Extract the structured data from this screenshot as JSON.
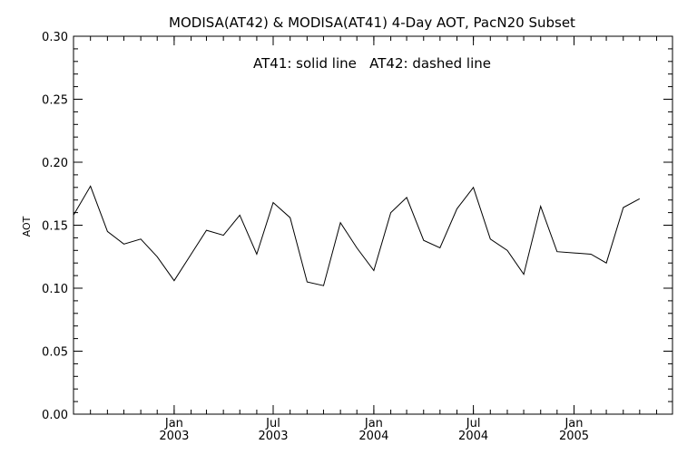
{
  "chart_data": {
    "type": "line",
    "title": "MODISA(AT42) & MODISA(AT41) 4-Day AOT, PacN20 Subset",
    "annotation": "AT41: solid line   AT42: dashed line",
    "xlabel": "",
    "ylabel": "AOT",
    "ylim": [
      0.0,
      0.3
    ],
    "yticks": [
      {
        "value": 0.0,
        "label": "0.00"
      },
      {
        "value": 0.05,
        "label": "0.05"
      },
      {
        "value": 0.1,
        "label": "0.10"
      },
      {
        "value": 0.15,
        "label": "0.15"
      },
      {
        "value": 0.2,
        "label": "0.20"
      },
      {
        "value": 0.25,
        "label": "0.25"
      },
      {
        "value": 0.3,
        "label": "0.30"
      }
    ],
    "xlim": [
      "2002-07-01",
      "2005-06-30"
    ],
    "xticks": [
      {
        "date": "2003-01-01",
        "label1": "Jan",
        "label2": "2003"
      },
      {
        "date": "2003-07-01",
        "label1": "Jul",
        "label2": "2003"
      },
      {
        "date": "2004-01-01",
        "label1": "Jan",
        "label2": "2004"
      },
      {
        "date": "2004-07-01",
        "label1": "Jul",
        "label2": "2004"
      },
      {
        "date": "2005-01-01",
        "label1": "Jan",
        "label2": "2005"
      }
    ],
    "grid": false,
    "series": [
      {
        "style": "solid",
        "points": [
          [
            "2002-07-01",
            0.158
          ],
          [
            "2002-08-01",
            0.181
          ],
          [
            "2002-09-01",
            0.145
          ],
          [
            "2002-10-01",
            0.135
          ],
          [
            "2002-11-01",
            0.139
          ],
          [
            "2002-12-01",
            0.125
          ],
          [
            "2003-01-01",
            0.106
          ],
          [
            "2003-02-01",
            0.127
          ],
          [
            "2003-03-01",
            0.146
          ],
          [
            "2003-04-01",
            0.142
          ],
          [
            "2003-05-01",
            0.158
          ],
          [
            "2003-06-01",
            0.127
          ],
          [
            "2003-07-01",
            0.168
          ],
          [
            "2003-08-01",
            0.156
          ],
          [
            "2003-09-01",
            0.105
          ],
          [
            "2003-10-01",
            0.102
          ],
          [
            "2003-11-01",
            0.152
          ],
          [
            "2003-12-01",
            0.132
          ],
          [
            "2004-01-01",
            0.114
          ],
          [
            "2004-02-01",
            0.16
          ],
          [
            "2004-03-01",
            0.172
          ],
          [
            "2004-04-01",
            0.138
          ],
          [
            "2004-05-01",
            0.132
          ],
          [
            "2004-06-01",
            0.163
          ],
          [
            "2004-07-01",
            0.18
          ],
          [
            "2004-08-01",
            0.139
          ],
          [
            "2004-09-01",
            0.13
          ],
          [
            "2004-10-01",
            0.111
          ],
          [
            "2004-11-01",
            0.165
          ],
          [
            "2004-12-01",
            0.129
          ],
          [
            "2005-01-01",
            0.128
          ],
          [
            "2005-02-01",
            0.127
          ],
          [
            "2005-03-01",
            0.12
          ],
          [
            "2005-04-01",
            0.164
          ],
          [
            "2005-05-01",
            0.171
          ]
        ]
      }
    ]
  }
}
